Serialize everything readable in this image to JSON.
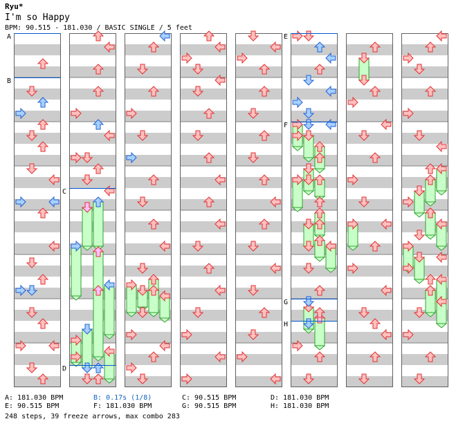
{
  "header": {
    "artist": "Ryu*",
    "song_title": "I'm so Happy",
    "meta": "BPM: 90.515 - 181.030 / BASIC SINGLE / 5 feet"
  },
  "colors": {
    "note_red_fill": "#ffc0c0",
    "note_red_stroke": "#e03030",
    "note_blue_fill": "#a8d0ff",
    "note_blue_stroke": "#2060d0",
    "note_pink_fill": "#ffc0ff",
    "freeze_fill": "#c8ffc8",
    "freeze_stroke": "#30a030",
    "stripe": "#cccccc",
    "marker_line": "#0055cc",
    "legend_highlight": "#1060c0"
  },
  "icons": [
    "left-arrow-icon",
    "down-arrow-icon",
    "up-arrow-icon",
    "right-arrow-icon",
    "freeze-arrow-icon"
  ],
  "markers": [
    {
      "label": "A",
      "column": 0,
      "beat": 0
    },
    {
      "label": "B",
      "column": 0,
      "beat": 8
    },
    {
      "label": "C",
      "column": 1,
      "beat": 28
    },
    {
      "label": "D",
      "column": 1,
      "beat": 60
    },
    {
      "label": "E",
      "column": 5,
      "beat": 0
    },
    {
      "label": "F",
      "column": 5,
      "beat": 16
    },
    {
      "label": "G",
      "column": 5,
      "beat": 48
    },
    {
      "label": "H",
      "column": 5,
      "beat": 52
    }
  ],
  "legend": [
    {
      "text": "A: 181.030 BPM",
      "highlight": false
    },
    {
      "text": "B: 0.17s (1/8)",
      "highlight": true
    },
    {
      "text": "C: 90.515 BPM",
      "highlight": false
    },
    {
      "text": "D: 181.030 BPM",
      "highlight": false
    },
    {
      "text": "E: 90.515 BPM",
      "highlight": false
    },
    {
      "text": "F: 181.030 BPM",
      "highlight": false
    },
    {
      "text": "G: 90.515 BPM",
      "highlight": false
    },
    {
      "text": "H: 181.030 BPM",
      "highlight": false
    }
  ],
  "footer": "248 steps, 39 freeze arrows, max combo 283",
  "chart_data": {
    "type": "step_chart",
    "lanes": [
      "left",
      "down",
      "up",
      "right"
    ],
    "beats_per_column": 64,
    "column_count": 8,
    "notes": [
      [
        0,
        5,
        2,
        "r"
      ],
      [
        0,
        10,
        1,
        "r"
      ],
      [
        0,
        12,
        2,
        "b"
      ],
      [
        0,
        14,
        0,
        "b"
      ],
      [
        0,
        16,
        2,
        "r"
      ],
      [
        0,
        18,
        1,
        "r"
      ],
      [
        0,
        20,
        2,
        "r"
      ],
      [
        0,
        24,
        1,
        "r"
      ],
      [
        0,
        26,
        3,
        "r"
      ],
      [
        0,
        30,
        0,
        "b"
      ],
      [
        0,
        30,
        3,
        "b"
      ],
      [
        0,
        32,
        2,
        "r"
      ],
      [
        0,
        38,
        3,
        "r"
      ],
      [
        0,
        41,
        1,
        "r"
      ],
      [
        0,
        44,
        2,
        "r"
      ],
      [
        0,
        46,
        0,
        "b"
      ],
      [
        0,
        46,
        1,
        "b"
      ],
      [
        0,
        50,
        1,
        "r"
      ],
      [
        0,
        52,
        2,
        "r"
      ],
      [
        0,
        56,
        0,
        "r"
      ],
      [
        0,
        56,
        3,
        "r"
      ],
      [
        0,
        60,
        1,
        "r"
      ],
      [
        0,
        62,
        2,
        "r"
      ],
      [
        1,
        0,
        2,
        "r"
      ],
      [
        1,
        2,
        3,
        "r"
      ],
      [
        1,
        6,
        2,
        "r"
      ],
      [
        1,
        10,
        2,
        "r"
      ],
      [
        1,
        14,
        0,
        "r"
      ],
      [
        1,
        16,
        2,
        "b"
      ],
      [
        1,
        18,
        3,
        "r"
      ],
      [
        1,
        22,
        0,
        "r"
      ],
      [
        1,
        22,
        1,
        "r"
      ],
      [
        1,
        24,
        2,
        "r"
      ],
      [
        1,
        26,
        1,
        "r"
      ],
      [
        1,
        28,
        3,
        "r"
      ],
      [
        1,
        58,
        0,
        "r"
      ],
      [
        1,
        60,
        1,
        "b"
      ],
      [
        1,
        60,
        2,
        "b"
      ],
      [
        1,
        62,
        1,
        "r"
      ],
      [
        1,
        62,
        2,
        "r"
      ],
      [
        2,
        0,
        3,
        "b"
      ],
      [
        2,
        2,
        2,
        "r"
      ],
      [
        2,
        6,
        1,
        "r"
      ],
      [
        2,
        10,
        2,
        "r"
      ],
      [
        2,
        14,
        0,
        "r"
      ],
      [
        2,
        18,
        1,
        "r"
      ],
      [
        2,
        22,
        0,
        "b"
      ],
      [
        2,
        26,
        2,
        "r"
      ],
      [
        2,
        30,
        1,
        "r"
      ],
      [
        2,
        34,
        2,
        "r"
      ],
      [
        2,
        38,
        3,
        "r"
      ],
      [
        2,
        42,
        1,
        "r"
      ],
      [
        2,
        46,
        2,
        "r"
      ],
      [
        2,
        50,
        1,
        "r"
      ],
      [
        2,
        54,
        0,
        "r"
      ],
      [
        2,
        56,
        3,
        "r"
      ],
      [
        2,
        58,
        2,
        "r"
      ],
      [
        2,
        60,
        0,
        "r"
      ],
      [
        2,
        62,
        1,
        "r"
      ],
      [
        3,
        0,
        2,
        "r"
      ],
      [
        3,
        2,
        3,
        "r"
      ],
      [
        3,
        4,
        0,
        "r"
      ],
      [
        3,
        6,
        1,
        "r"
      ],
      [
        3,
        8,
        3,
        "r"
      ],
      [
        3,
        10,
        1,
        "r"
      ],
      [
        3,
        14,
        2,
        "r"
      ],
      [
        3,
        18,
        1,
        "r"
      ],
      [
        3,
        22,
        2,
        "r"
      ],
      [
        3,
        26,
        3,
        "r"
      ],
      [
        3,
        30,
        2,
        "r"
      ],
      [
        3,
        34,
        3,
        "r"
      ],
      [
        3,
        38,
        1,
        "r"
      ],
      [
        3,
        42,
        2,
        "r"
      ],
      [
        3,
        46,
        3,
        "r"
      ],
      [
        3,
        50,
        1,
        "r"
      ],
      [
        3,
        54,
        0,
        "r"
      ],
      [
        3,
        58,
        3,
        "r"
      ],
      [
        3,
        62,
        0,
        "r"
      ],
      [
        4,
        0,
        1,
        "r"
      ],
      [
        4,
        2,
        3,
        "r"
      ],
      [
        4,
        4,
        0,
        "r"
      ],
      [
        4,
        6,
        2,
        "r"
      ],
      [
        4,
        10,
        2,
        "r"
      ],
      [
        4,
        14,
        1,
        "r"
      ],
      [
        4,
        18,
        2,
        "r"
      ],
      [
        4,
        22,
        1,
        "r"
      ],
      [
        4,
        26,
        2,
        "r"
      ],
      [
        4,
        30,
        3,
        "r"
      ],
      [
        4,
        34,
        2,
        "r"
      ],
      [
        4,
        38,
        1,
        "r"
      ],
      [
        4,
        42,
        3,
        "r"
      ],
      [
        4,
        46,
        1,
        "r"
      ],
      [
        4,
        50,
        2,
        "r"
      ],
      [
        4,
        54,
        1,
        "r"
      ],
      [
        4,
        58,
        0,
        "r"
      ],
      [
        4,
        62,
        3,
        "r"
      ],
      [
        5,
        0,
        0,
        "r"
      ],
      [
        5,
        0,
        1,
        "r"
      ],
      [
        5,
        2,
        2,
        "b"
      ],
      [
        5,
        4,
        3,
        "b"
      ],
      [
        5,
        6,
        2,
        "r"
      ],
      [
        5,
        8,
        1,
        "b"
      ],
      [
        5,
        10,
        3,
        "b"
      ],
      [
        5,
        12,
        0,
        "b"
      ],
      [
        5,
        14,
        1,
        "b"
      ],
      [
        5,
        16,
        1,
        "b"
      ],
      [
        5,
        16,
        3,
        "b"
      ],
      [
        5,
        18,
        0,
        "r"
      ],
      [
        5,
        22,
        2,
        "r"
      ],
      [
        5,
        26,
        1,
        "r"
      ],
      [
        5,
        30,
        2,
        "r"
      ],
      [
        5,
        34,
        2,
        "r"
      ],
      [
        5,
        38,
        1,
        "r"
      ],
      [
        5,
        42,
        1,
        "r"
      ],
      [
        5,
        46,
        2,
        "r"
      ],
      [
        5,
        48,
        1,
        "b"
      ],
      [
        5,
        50,
        2,
        "r"
      ],
      [
        5,
        52,
        1,
        "b"
      ],
      [
        5,
        56,
        0,
        "r"
      ],
      [
        5,
        58,
        2,
        "r"
      ],
      [
        5,
        62,
        1,
        "r"
      ],
      [
        6,
        2,
        2,
        "r"
      ],
      [
        6,
        8,
        1,
        "r"
      ],
      [
        6,
        10,
        2,
        "r"
      ],
      [
        6,
        12,
        0,
        "r"
      ],
      [
        6,
        16,
        3,
        "r"
      ],
      [
        6,
        18,
        1,
        "r"
      ],
      [
        6,
        22,
        2,
        "r"
      ],
      [
        6,
        26,
        0,
        "r"
      ],
      [
        6,
        30,
        1,
        "r"
      ],
      [
        6,
        34,
        3,
        "r"
      ],
      [
        6,
        38,
        2,
        "r"
      ],
      [
        6,
        42,
        0,
        "r"
      ],
      [
        6,
        46,
        3,
        "r"
      ],
      [
        6,
        50,
        1,
        "r"
      ],
      [
        6,
        52,
        2,
        "r"
      ],
      [
        6,
        54,
        3,
        "r"
      ],
      [
        6,
        58,
        2,
        "r"
      ],
      [
        6,
        62,
        1,
        "r"
      ],
      [
        7,
        0,
        3,
        "r"
      ],
      [
        7,
        2,
        2,
        "r"
      ],
      [
        7,
        4,
        0,
        "r"
      ],
      [
        7,
        6,
        1,
        "r"
      ],
      [
        7,
        10,
        2,
        "r"
      ],
      [
        7,
        14,
        0,
        "r"
      ],
      [
        7,
        18,
        1,
        "r"
      ],
      [
        7,
        20,
        3,
        "r"
      ],
      [
        7,
        24,
        2,
        "r"
      ],
      [
        7,
        28,
        1,
        "r"
      ],
      [
        7,
        30,
        0,
        "r"
      ],
      [
        7,
        32,
        2,
        "r"
      ],
      [
        7,
        36,
        1,
        "r"
      ],
      [
        7,
        40,
        3,
        "r"
      ],
      [
        7,
        42,
        0,
        "r"
      ],
      [
        7,
        44,
        2,
        "r"
      ],
      [
        7,
        48,
        3,
        "r"
      ],
      [
        7,
        50,
        1,
        "r"
      ],
      [
        7,
        54,
        0,
        "r"
      ],
      [
        7,
        58,
        2,
        "r"
      ],
      [
        7,
        62,
        1,
        "r"
      ]
    ],
    "freezes": [
      [
        1,
        31,
        38,
        1,
        "p"
      ],
      [
        1,
        30,
        38,
        2,
        "b"
      ],
      [
        1,
        38,
        47,
        0,
        "b"
      ],
      [
        1,
        39,
        46,
        2,
        "p"
      ],
      [
        1,
        46,
        58,
        2,
        "p"
      ],
      [
        1,
        45,
        54,
        3,
        "b"
      ],
      [
        1,
        53,
        60,
        1,
        "b"
      ],
      [
        1,
        55,
        59,
        0,
        "r"
      ],
      [
        1,
        57,
        62,
        3,
        "r"
      ],
      [
        2,
        45,
        50,
        0,
        "r"
      ],
      [
        2,
        46,
        49,
        1,
        "r"
      ],
      [
        2,
        44,
        50,
        2,
        "r"
      ],
      [
        2,
        47,
        51,
        3,
        "r"
      ],
      [
        5,
        16,
        20,
        0,
        "r"
      ],
      [
        5,
        18,
        22,
        1,
        "r"
      ],
      [
        5,
        20,
        24,
        2,
        "r"
      ],
      [
        5,
        24,
        28,
        1,
        "r"
      ],
      [
        5,
        26,
        29,
        2,
        "r"
      ],
      [
        5,
        26,
        31,
        0,
        "r"
      ],
      [
        5,
        32,
        36,
        2,
        "r"
      ],
      [
        5,
        34,
        38,
        1,
        "r"
      ],
      [
        5,
        37,
        40,
        2,
        "r"
      ],
      [
        5,
        38,
        42,
        3,
        "r"
      ],
      [
        5,
        49,
        53,
        1,
        "r"
      ],
      [
        5,
        51,
        56,
        2,
        "p"
      ],
      [
        6,
        4,
        8,
        1,
        "r"
      ],
      [
        6,
        34,
        38,
        0,
        "r"
      ],
      [
        7,
        24,
        28,
        3,
        "r"
      ],
      [
        7,
        26,
        30,
        2,
        "r"
      ],
      [
        7,
        28,
        32,
        1,
        "r"
      ],
      [
        7,
        32,
        36,
        2,
        "r"
      ],
      [
        7,
        34,
        38,
        3,
        "r"
      ],
      [
        7,
        38,
        42,
        0,
        "r"
      ],
      [
        7,
        40,
        44,
        1,
        "r"
      ],
      [
        7,
        44,
        48,
        3,
        "r"
      ],
      [
        7,
        46,
        50,
        2,
        "r"
      ],
      [
        7,
        48,
        52,
        3,
        "r"
      ]
    ]
  }
}
